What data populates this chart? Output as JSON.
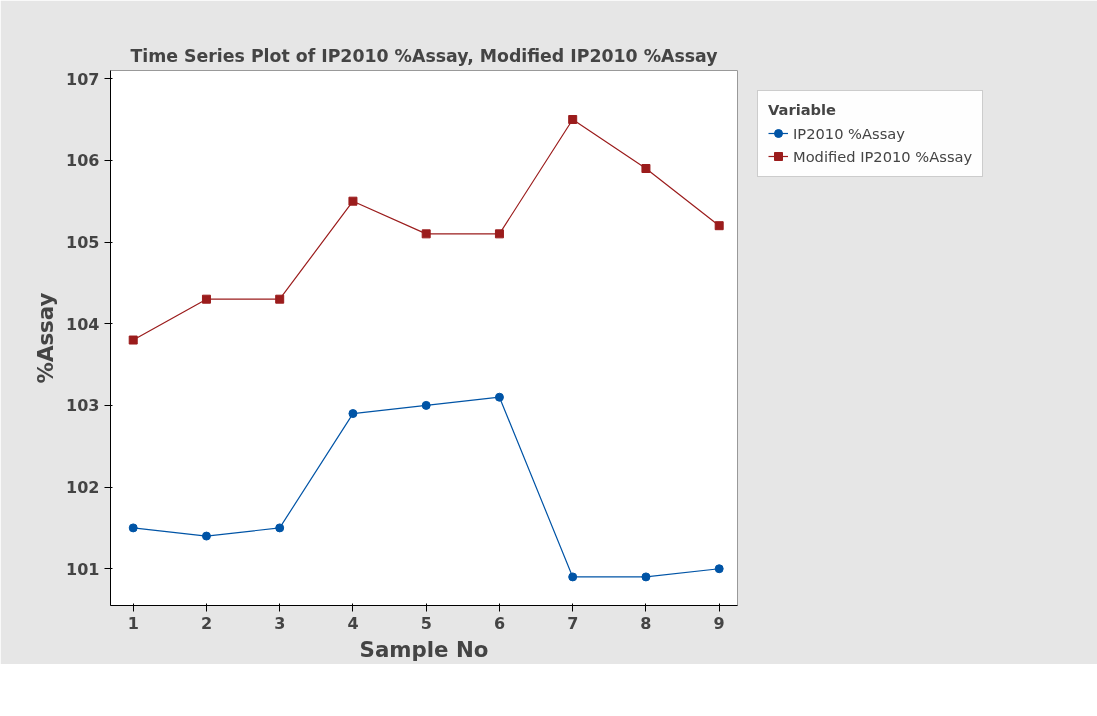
{
  "chart_data": {
    "type": "line",
    "title": "Time Series Plot of IP2010 %Assay, Modified IP2010 %Assay",
    "xlabel": "Sample No",
    "ylabel": "%Assay",
    "legend_title": "Variable",
    "legend": "right",
    "grid": false,
    "x": [
      1,
      2,
      3,
      4,
      5,
      6,
      7,
      8,
      9
    ],
    "xlim": [
      0.69,
      9.25
    ],
    "xticks": [
      1,
      2,
      3,
      4,
      5,
      6,
      7,
      8,
      9
    ],
    "ylim": [
      100.55,
      107.1
    ],
    "yticks": [
      101,
      102,
      103,
      104,
      105,
      106,
      107
    ],
    "series": [
      {
        "name": "IP2010 %Assay",
        "color": "#0054a6",
        "marker": "circle",
        "values": [
          101.5,
          101.4,
          101.5,
          102.9,
          103.0,
          103.1,
          100.9,
          100.9,
          101.0
        ]
      },
      {
        "name": "Modified IP2010 %Assay",
        "color": "#9b1c1c",
        "marker": "square",
        "values": [
          103.8,
          104.3,
          104.3,
          105.5,
          105.1,
          105.1,
          106.5,
          105.9,
          105.2
        ]
      }
    ]
  }
}
